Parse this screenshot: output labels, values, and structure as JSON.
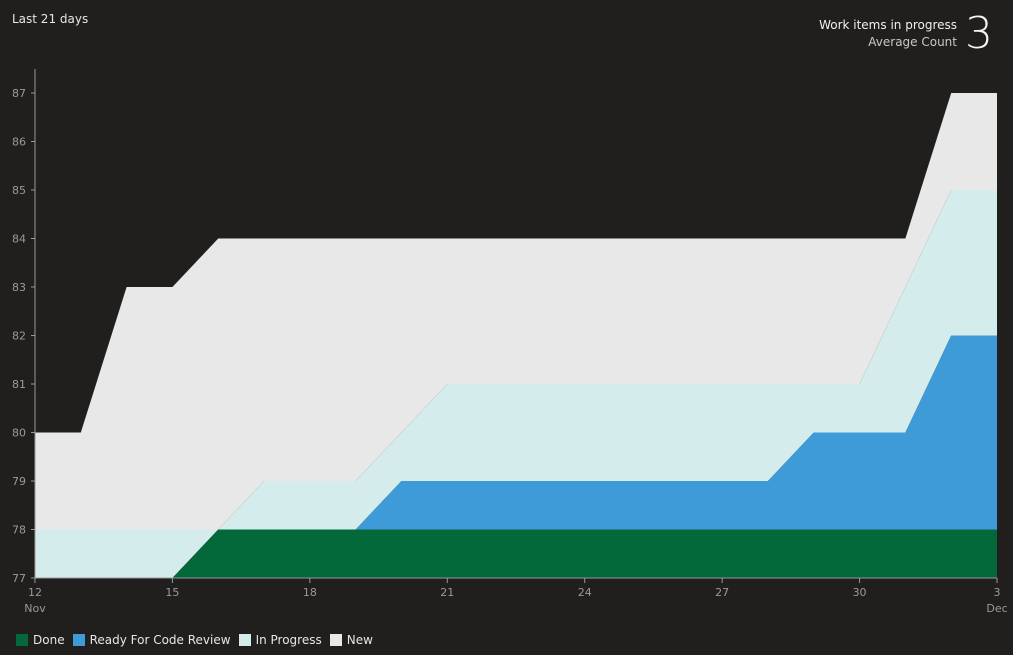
{
  "header": {
    "period": "Last 21 days",
    "summary_title": "Work items in progress",
    "summary_sub": "Average Count",
    "summary_value": "3"
  },
  "chart_data": {
    "type": "area",
    "stacked": true,
    "x": [
      "Nov 12",
      "Nov 13",
      "Nov 14",
      "Nov 15",
      "Nov 16",
      "Nov 17",
      "Nov 18",
      "Nov 19",
      "Nov 20",
      "Nov 21",
      "Nov 22",
      "Nov 23",
      "Nov 24",
      "Nov 25",
      "Nov 26",
      "Nov 27",
      "Nov 28",
      "Nov 29",
      "Nov 30",
      "Dec 1",
      "Dec 2",
      "Dec 3"
    ],
    "x_ticks": [
      {
        "label": "12",
        "sub": "Nov",
        "index": 0
      },
      {
        "label": "15",
        "sub": "",
        "index": 3
      },
      {
        "label": "18",
        "sub": "",
        "index": 6
      },
      {
        "label": "21",
        "sub": "",
        "index": 9
      },
      {
        "label": "24",
        "sub": "",
        "index": 12
      },
      {
        "label": "27",
        "sub": "",
        "index": 15
      },
      {
        "label": "30",
        "sub": "",
        "index": 18
      },
      {
        "label": "3",
        "sub": "Dec",
        "index": 21
      }
    ],
    "ylim": [
      77,
      87
    ],
    "y_ticks": [
      77,
      78,
      79,
      80,
      81,
      82,
      83,
      84,
      85,
      86,
      87
    ],
    "cumulative": {
      "Done": [
        77,
        77,
        77,
        77,
        78,
        78,
        78,
        78,
        78,
        78,
        78,
        78,
        78,
        78,
        78,
        78,
        78,
        78,
        78,
        78,
        78,
        78
      ],
      "Ready For Code Review": [
        77,
        77,
        77,
        77,
        78,
        78,
        78,
        78,
        79,
        79,
        79,
        79,
        79,
        79,
        79,
        79,
        79,
        80,
        80,
        80,
        82,
        82
      ],
      "In Progress": [
        78,
        78,
        78,
        78,
        78,
        79,
        79,
        79,
        80,
        81,
        81,
        81,
        81,
        81,
        81,
        81,
        81,
        81,
        81,
        83,
        85,
        85
      ],
      "New": [
        80,
        80,
        83,
        83,
        84,
        84,
        84,
        84,
        84,
        84,
        84,
        84,
        84,
        84,
        84,
        84,
        84,
        84,
        84,
        84,
        87,
        87
      ]
    },
    "series": [
      {
        "name": "New",
        "color": "#e8e8e8"
      },
      {
        "name": "In Progress",
        "color": "#d5ecec"
      },
      {
        "name": "Ready For Code Review",
        "color": "#3f9bd8"
      },
      {
        "name": "Done",
        "color": "#03683a"
      }
    ],
    "legend": [
      {
        "name": "Done",
        "color": "#03683a"
      },
      {
        "name": "Ready For Code Review",
        "color": "#3f9bd8"
      },
      {
        "name": "In Progress",
        "color": "#d5ecec"
      },
      {
        "name": "New",
        "color": "#e8e8e8"
      }
    ],
    "legend_position": "bottom-left",
    "grid": false
  }
}
